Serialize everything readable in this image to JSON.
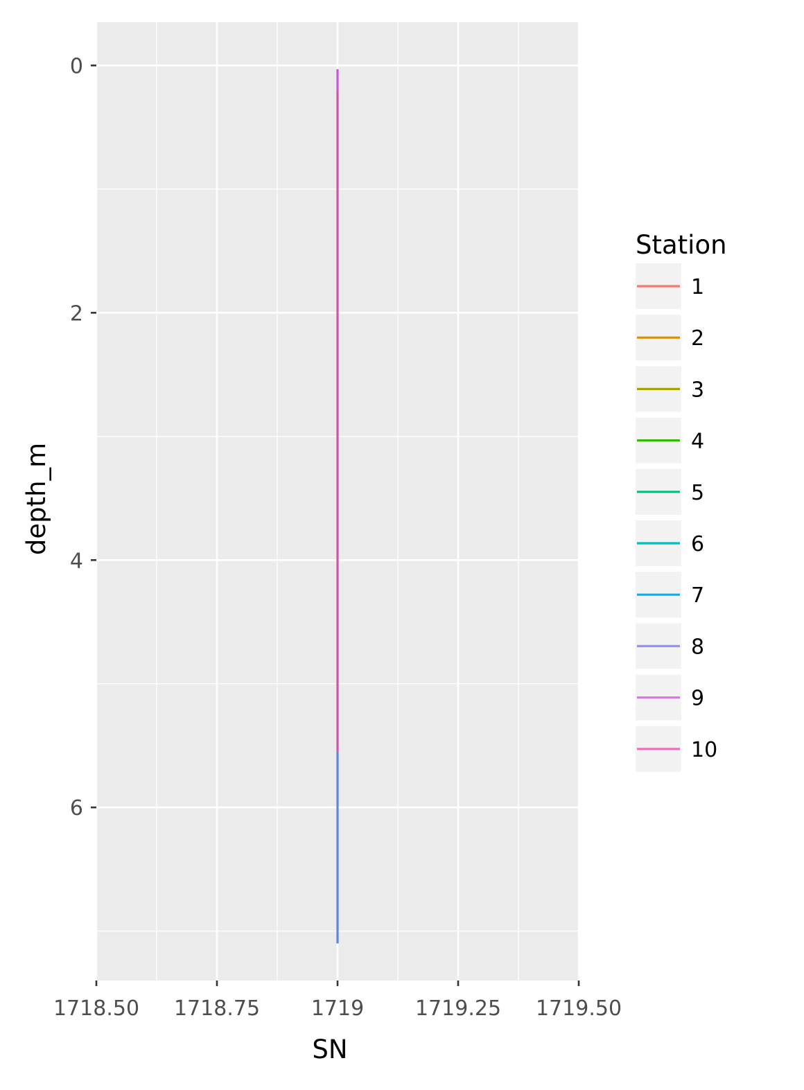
{
  "chart_data": {
    "type": "line",
    "title": "",
    "xlabel": "SN",
    "ylabel": "depth_m",
    "xlim": [
      1718.5,
      1719.5
    ],
    "ylim": [
      7.4,
      -0.35
    ],
    "y_reversed": true,
    "grid": true,
    "x_ticks": [
      {
        "value": 1718.5,
        "label": "1718.50"
      },
      {
        "value": 1718.75,
        "label": "1718.75"
      },
      {
        "value": 1719.0,
        "label": "1719"
      },
      {
        "value": 1719.25,
        "label": "1719.25"
      },
      {
        "value": 1719.5,
        "label": "1719.50"
      }
    ],
    "x_minor": [
      1718.625,
      1718.875,
      1719.125,
      1719.375
    ],
    "y_ticks": [
      {
        "value": 0,
        "label": "0"
      },
      {
        "value": 2,
        "label": "2"
      },
      {
        "value": 4,
        "label": "4"
      },
      {
        "value": 6,
        "label": "6"
      }
    ],
    "y_minor": [
      1,
      3,
      5,
      7
    ],
    "legend": {
      "title": "Station",
      "placement": "right",
      "entries": [
        {
          "label": "1",
          "color": "#F8766D"
        },
        {
          "label": "2",
          "color": "#D89000"
        },
        {
          "label": "3",
          "color": "#A3A500"
        },
        {
          "label": "4",
          "color": "#39B600"
        },
        {
          "label": "5",
          "color": "#00BF7D"
        },
        {
          "label": "6",
          "color": "#00BFC4"
        },
        {
          "label": "7",
          "color": "#00B0F6"
        },
        {
          "label": "8",
          "color": "#9590FF"
        },
        {
          "label": "9",
          "color": "#E76BF3"
        },
        {
          "label": "10",
          "color": "#FF62BC"
        }
      ]
    },
    "series": [
      {
        "station": "7",
        "color": "#5B87D6",
        "x": [
          1719,
          1719
        ],
        "y": [
          5.55,
          7.1
        ]
      },
      {
        "station": "9",
        "color": "#C855DE",
        "x": [
          1719,
          1719
        ],
        "y": [
          0.03,
          0.2
        ]
      },
      {
        "station": "10",
        "color": "#D153A8",
        "x": [
          1719,
          1719
        ],
        "y": [
          0.2,
          5.55
        ]
      }
    ]
  }
}
